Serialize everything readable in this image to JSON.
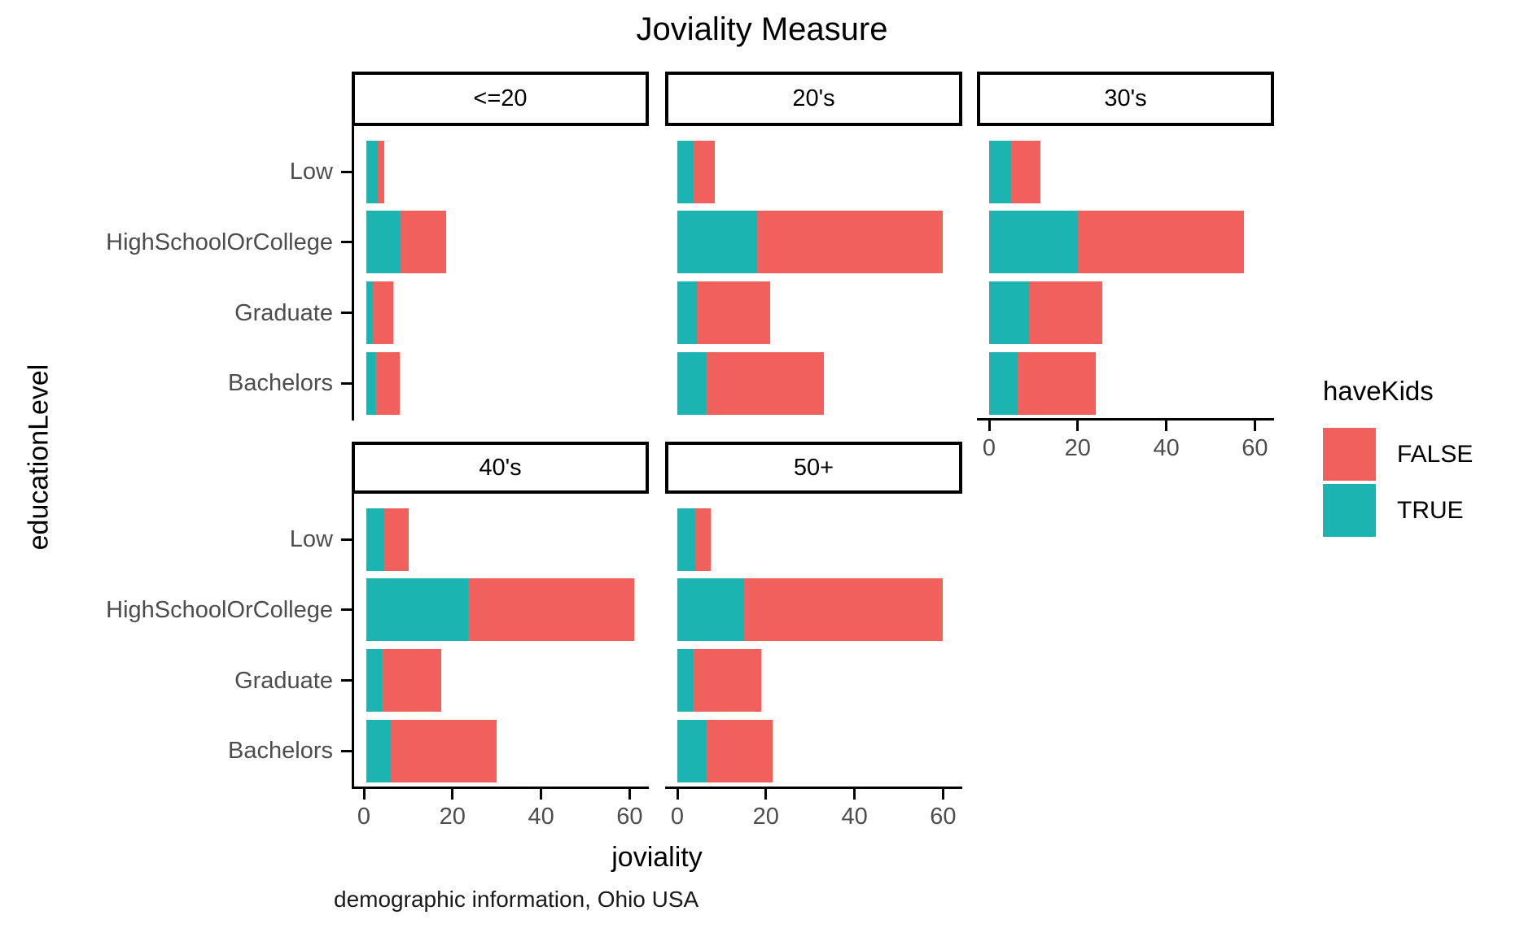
{
  "title": "Joviality Measure",
  "x_axis_title": "joviality",
  "y_axis_title": "educationLevel",
  "caption": "demographic information, Ohio USA",
  "legend": {
    "title": "haveKids",
    "entries": [
      {
        "label": "FALSE",
        "color": "#F0605C"
      },
      {
        "label": "TRUE",
        "color": "#1CB4B0"
      }
    ]
  },
  "chart_data": {
    "type": "bar",
    "orientation": "horizontal",
    "stacked": true,
    "title": "Joviality Measure",
    "xlabel": "joviality",
    "ylabel": "educationLevel",
    "caption": "demographic information, Ohio USA",
    "grid": false,
    "legend_position": "right",
    "categories": [
      "Low",
      "HighSchoolOrCollege",
      "Graduate",
      "Bachelors"
    ],
    "x_ticks": [
      0,
      20,
      40,
      60
    ],
    "xlim": [
      0,
      64
    ],
    "series_colors": {
      "TRUE": "#1CB4B0",
      "FALSE": "#F0605C"
    },
    "facets": [
      {
        "label": "<=20",
        "row": 0,
        "col": 0,
        "has_x_axis": false,
        "series": [
          {
            "name": "TRUE",
            "values": [
              2.5,
              7.5,
              1.5,
              2.0
            ]
          },
          {
            "name": "FALSE",
            "values": [
              1.5,
              10.5,
              4.5,
              5.5
            ]
          }
        ]
      },
      {
        "label": "20's",
        "row": 0,
        "col": 1,
        "has_x_axis": false,
        "series": [
          {
            "name": "TRUE",
            "values": [
              3.5,
              18.0,
              4.5,
              6.5
            ]
          },
          {
            "name": "FALSE",
            "values": [
              5.0,
              42.0,
              16.5,
              26.5
            ]
          }
        ]
      },
      {
        "label": "30's",
        "row": 0,
        "col": 2,
        "has_x_axis": true,
        "series": [
          {
            "name": "TRUE",
            "values": [
              5.0,
              20.0,
              9.0,
              6.5
            ]
          },
          {
            "name": "FALSE",
            "values": [
              6.5,
              37.5,
              16.5,
              17.5
            ]
          }
        ]
      },
      {
        "label": "40's",
        "row": 1,
        "col": 0,
        "has_x_axis": true,
        "series": [
          {
            "name": "TRUE",
            "values": [
              4.0,
              23.0,
              3.5,
              5.5
            ]
          },
          {
            "name": "FALSE",
            "values": [
              5.5,
              37.5,
              13.5,
              24.0
            ]
          }
        ]
      },
      {
        "label": "50+",
        "row": 1,
        "col": 1,
        "has_x_axis": true,
        "series": [
          {
            "name": "TRUE",
            "values": [
              4.0,
              15.0,
              3.5,
              6.5
            ]
          },
          {
            "name": "FALSE",
            "values": [
              3.5,
              45.0,
              15.5,
              15.0
            ]
          }
        ]
      }
    ]
  }
}
